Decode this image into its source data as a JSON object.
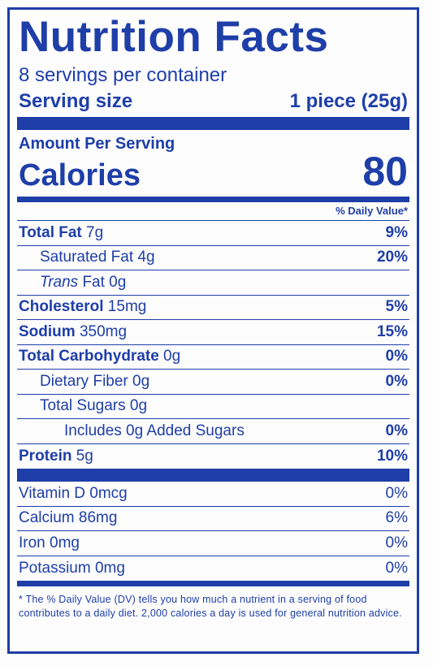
{
  "title": "Nutrition Facts",
  "servings_per_container": "8 servings per container",
  "serving_size_label": "Serving size",
  "serving_size_value": "1 piece (25g)",
  "amount_per_serving": "Amount Per Serving",
  "calories_label": "Calories",
  "calories_value": "80",
  "daily_value_header": "% Daily Value*",
  "nutrients": [
    {
      "name": "Total Fat",
      "amount": " 7g",
      "dv": "9%"
    },
    {
      "name": "Saturated Fat",
      "amount": " 4g",
      "dv": "20%"
    },
    {
      "name": "Trans",
      "amount": " Fat 0g",
      "dv": ""
    },
    {
      "name": "Cholesterol",
      "amount": " 15mg",
      "dv": "5%"
    },
    {
      "name": "Sodium",
      "amount": " 350mg",
      "dv": "15%"
    },
    {
      "name": "Total Carbohydrate",
      "amount": " 0g",
      "dv": "0%"
    },
    {
      "name": "Dietary Fiber",
      "amount": " 0g",
      "dv": "0%"
    },
    {
      "name": "Total Sugars",
      "amount": " 0g",
      "dv": ""
    },
    {
      "name": "Includes 0g Added Sugars",
      "amount": "",
      "dv": "0%"
    },
    {
      "name": "Protein",
      "amount": " 5g",
      "dv": "10%"
    }
  ],
  "vitamins": [
    {
      "name": "Vitamin D 0mcg",
      "dv": "0%"
    },
    {
      "name": "Calcium 86mg",
      "dv": "6%"
    },
    {
      "name": "Iron 0mg",
      "dv": "0%"
    },
    {
      "name": "Potassium 0mg",
      "dv": "0%"
    }
  ],
  "footnote": "* The % Daily Value (DV) tells you how much a nutrient in a serving of food contributes to a daily diet. 2,000 calories a day is used for general nutrition advice.",
  "colors": {
    "label_blue": "#1e3ea8",
    "background": "#fdfdfe"
  }
}
